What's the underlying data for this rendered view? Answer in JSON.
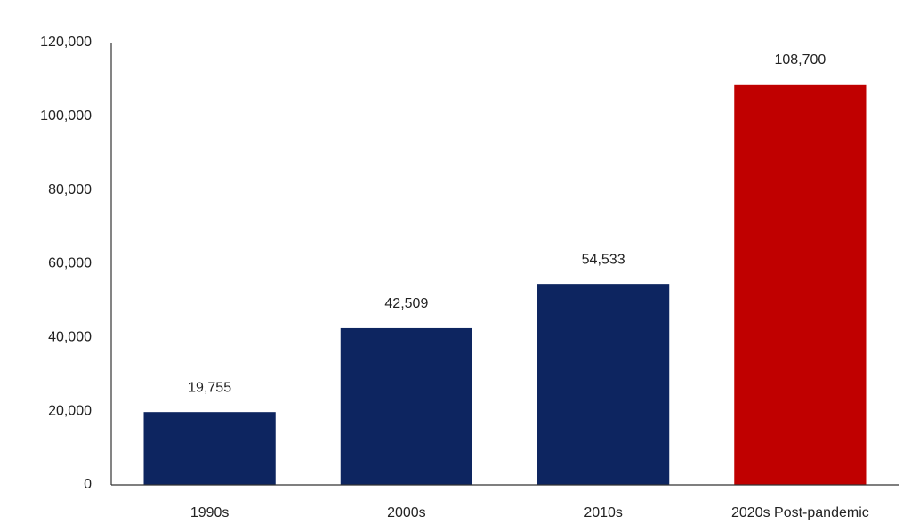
{
  "chart_data": {
    "type": "bar",
    "categories": [
      "1990s",
      "2000s",
      "2010s",
      "2020s Post-pandemic"
    ],
    "values": [
      19755,
      42509,
      54533,
      108700
    ],
    "value_labels": [
      "19,755",
      "42,509",
      "54,533",
      "108,700"
    ],
    "colors": [
      "#0d2560",
      "#0d2560",
      "#0d2560",
      "#c00000"
    ],
    "ylim": [
      0,
      120000
    ],
    "yticks": [
      0,
      {
        "value": 20000,
        "label": "20,000"
      },
      {
        "value": 40000,
        "label": "40,000"
      },
      {
        "value": 60000,
        "label": "60,000"
      },
      {
        "value": 80000,
        "label": "80,000"
      },
      {
        "value": 100000,
        "label": "100,000"
      },
      {
        "value": 120000,
        "label": "120,000"
      }
    ],
    "grid": false
  }
}
